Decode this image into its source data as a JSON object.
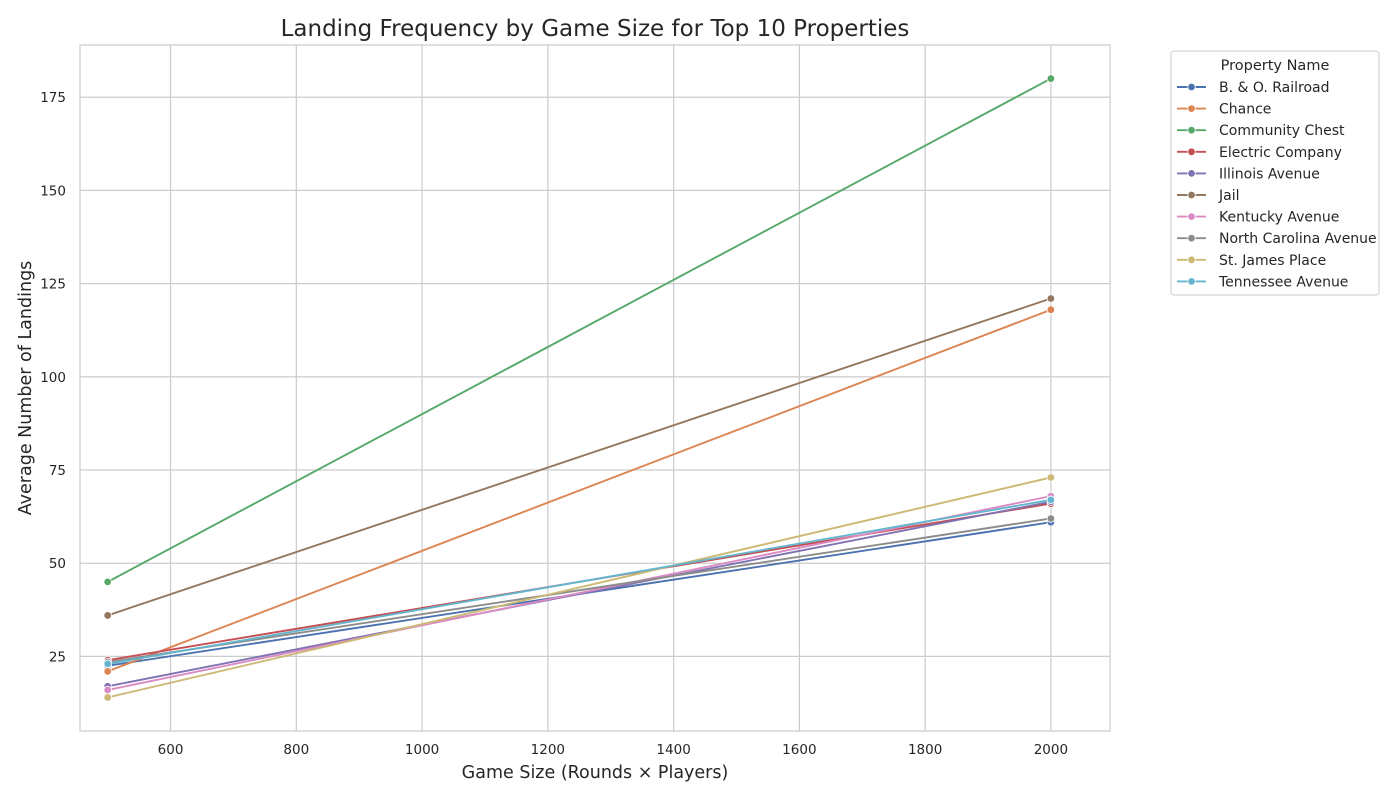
{
  "chart_data": {
    "type": "line",
    "title": "Landing Frequency by Game Size for Top 10 Properties",
    "xlabel": "Game Size (Rounds × Players)",
    "ylabel": "Average Number of Landings",
    "xlim": [
      456,
      2094
    ],
    "ylim": [
      5,
      189
    ],
    "x": [
      500,
      2000
    ],
    "xticks": [
      600,
      800,
      1000,
      1200,
      1400,
      1600,
      1800,
      2000
    ],
    "yticks": [
      25,
      50,
      75,
      100,
      125,
      150,
      175
    ],
    "grid": true,
    "legend": {
      "title": "Property Name",
      "placement": "outside-top-right"
    },
    "series": [
      {
        "name": "B. & O. Railroad",
        "color": "#4c72b0",
        "values": [
          22.5,
          61
        ]
      },
      {
        "name": "Chance",
        "color": "#dd8452",
        "values": [
          21,
          118
        ]
      },
      {
        "name": "Community Chest",
        "color": "#55a868",
        "values": [
          45,
          180
        ]
      },
      {
        "name": "Electric Company",
        "color": "#c44e52",
        "values": [
          24,
          66
        ]
      },
      {
        "name": "Illinois Avenue",
        "color": "#8172b3",
        "values": [
          17,
          66.5
        ]
      },
      {
        "name": "Jail",
        "color": "#937860",
        "values": [
          36,
          121
        ]
      },
      {
        "name": "Kentucky Avenue",
        "color": "#da8bc3",
        "values": [
          16,
          68
        ]
      },
      {
        "name": "North Carolina Avenue",
        "color": "#8c8c8c",
        "values": [
          23.5,
          62
        ]
      },
      {
        "name": "St. James Place",
        "color": "#ccb974",
        "values": [
          14,
          73
        ]
      },
      {
        "name": "Tennessee Avenue",
        "color": "#64b5cd",
        "values": [
          23,
          67
        ]
      }
    ]
  }
}
